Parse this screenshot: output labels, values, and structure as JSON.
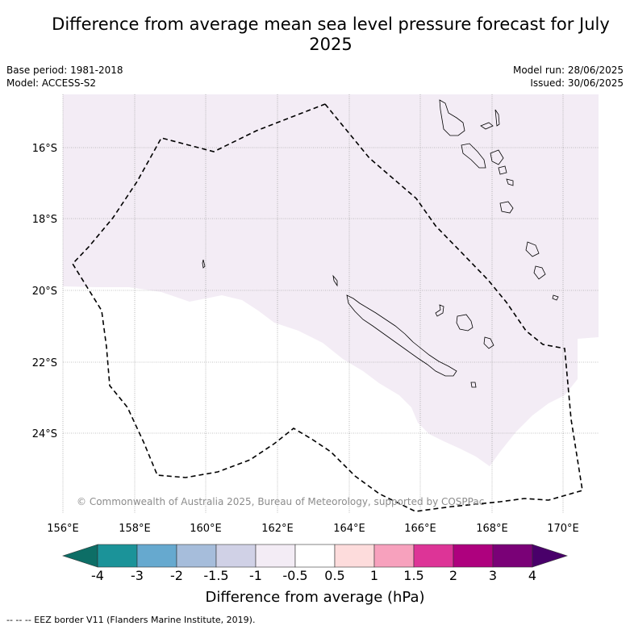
{
  "title": "Difference from average mean sea level pressure forecast for July 2025",
  "base_period": "Base period: 1981-2018",
  "model": "Model: ACCESS-S2",
  "model_run": "Model run: 28/06/2025",
  "issued": "Issued: 30/06/2025",
  "copyright": "© Commonwealth of Australia 2025, Bureau of Meteorology, supported by COSPPac",
  "lon_labels": [
    "156°E",
    "158°E",
    "160°E",
    "162°E",
    "164°E",
    "166°E",
    "168°E",
    "170°E"
  ],
  "lat_labels": [
    "16°S",
    "18°S",
    "20°S",
    "22°S",
    "24°S"
  ],
  "colorbar": {
    "label": "Difference from average (hPa)",
    "ticks": [
      "-4",
      "-3",
      "-2",
      "-1.5",
      "-1",
      "-0.5",
      "0.5",
      "1",
      "1.5",
      "2",
      "3",
      "4"
    ],
    "colors": [
      "#0d6e66",
      "#1b9399",
      "#66a9cf",
      "#a6bddb",
      "#d0d1e6",
      "#f3ecf5",
      "#ffffff",
      "#fddcdc",
      "#f7a1bd",
      "#dd3497",
      "#ae017e",
      "#7a0177",
      "#49006a"
    ]
  },
  "fill_color": "#f3ecf5",
  "footer": "-- -- -- EEZ border V11 (Flanders Marine Institute, 2019)."
}
